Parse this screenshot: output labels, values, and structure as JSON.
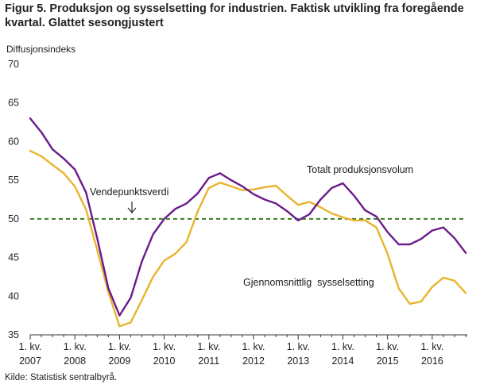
{
  "figure": {
    "title": "Figur 5. Produksjon og sysselsetting for industrien. Faktisk utvikling fra foregående kvartal. Glattet sesongjustert",
    "source": "Kilde: Statistisk sentralbyrå."
  },
  "chart_data": {
    "type": "line",
    "ylabel": "Diffusjonsindeks",
    "xlabel": "",
    "ylim": [
      35,
      70
    ],
    "yticks": [
      35,
      40,
      45,
      50,
      55,
      60,
      65,
      70
    ],
    "grid": false,
    "x": [
      "2007K1",
      "2007K2",
      "2007K3",
      "2007K4",
      "2008K1",
      "2008K2",
      "2008K3",
      "2008K4",
      "2009K1",
      "2009K2",
      "2009K3",
      "2009K4",
      "2010K1",
      "2010K2",
      "2010K3",
      "2010K4",
      "2011K1",
      "2011K2",
      "2011K3",
      "2011K4",
      "2012K1",
      "2012K2",
      "2012K3",
      "2012K4",
      "2013K1",
      "2013K2",
      "2013K3",
      "2013K4",
      "2014K1",
      "2014K2",
      "2014K3",
      "2014K4",
      "2015K1",
      "2015K2",
      "2015K3",
      "2015K4",
      "2016K1",
      "2016K2",
      "2016K3",
      "2016K4"
    ],
    "xtick_labels": [
      {
        "line1": "1. kv.",
        "line2": "2007"
      },
      {
        "line1": "1. kv.",
        "line2": "2008"
      },
      {
        "line1": "1. kv.",
        "line2": "2009"
      },
      {
        "line1": "1. kv.",
        "line2": "2010"
      },
      {
        "line1": "1. kv.",
        "line2": "2011"
      },
      {
        "line1": "1. kv.",
        "line2": "2012"
      },
      {
        "line1": "1. kv.",
        "line2": "2013"
      },
      {
        "line1": "1. kv.",
        "line2": "2014"
      },
      {
        "line1": "1. kv.",
        "line2": "2015"
      },
      {
        "line1": "1. kv.",
        "line2": "2016"
      }
    ],
    "series": [
      {
        "name": "Totalt produksjonsvolum",
        "color": "#6a1b8a",
        "values": [
          63.0,
          61.2,
          59.0,
          57.8,
          56.4,
          53.4,
          47.5,
          41.0,
          37.5,
          39.8,
          44.5,
          48.0,
          50.0,
          51.3,
          52.0,
          53.3,
          55.3,
          55.9,
          55.0,
          54.2,
          53.2,
          52.5,
          52.0,
          51.0,
          49.8,
          50.6,
          52.5,
          54.0,
          54.6,
          53.0,
          51.1,
          50.3,
          48.3,
          46.7,
          46.7,
          47.4,
          48.5,
          48.9,
          47.5,
          45.6
        ]
      },
      {
        "name": "Gjennomsnittlig sysselsetting",
        "color": "#e8b42c",
        "values": [
          58.8,
          58.1,
          57.0,
          55.9,
          54.2,
          51.2,
          46.0,
          40.5,
          36.1,
          36.6,
          39.5,
          42.5,
          44.6,
          45.5,
          47.0,
          51.0,
          54.0,
          54.7,
          54.2,
          53.7,
          53.8,
          54.1,
          54.3,
          53.0,
          51.8,
          52.2,
          51.5,
          50.7,
          50.2,
          49.8,
          49.8,
          48.9,
          45.5,
          41.0,
          39.0,
          39.3,
          41.2,
          42.4,
          42.0,
          40.4
        ]
      }
    ],
    "reference_line": {
      "value": 50,
      "color": "#3a7a1e",
      "style": "dashed"
    },
    "annotations": [
      {
        "text": "Totalt produksjonsvolum"
      },
      {
        "text": "Vendepunktsverdi",
        "arrow": "down"
      },
      {
        "text": "Gjennomsnittlig  sysselsetting"
      }
    ]
  }
}
